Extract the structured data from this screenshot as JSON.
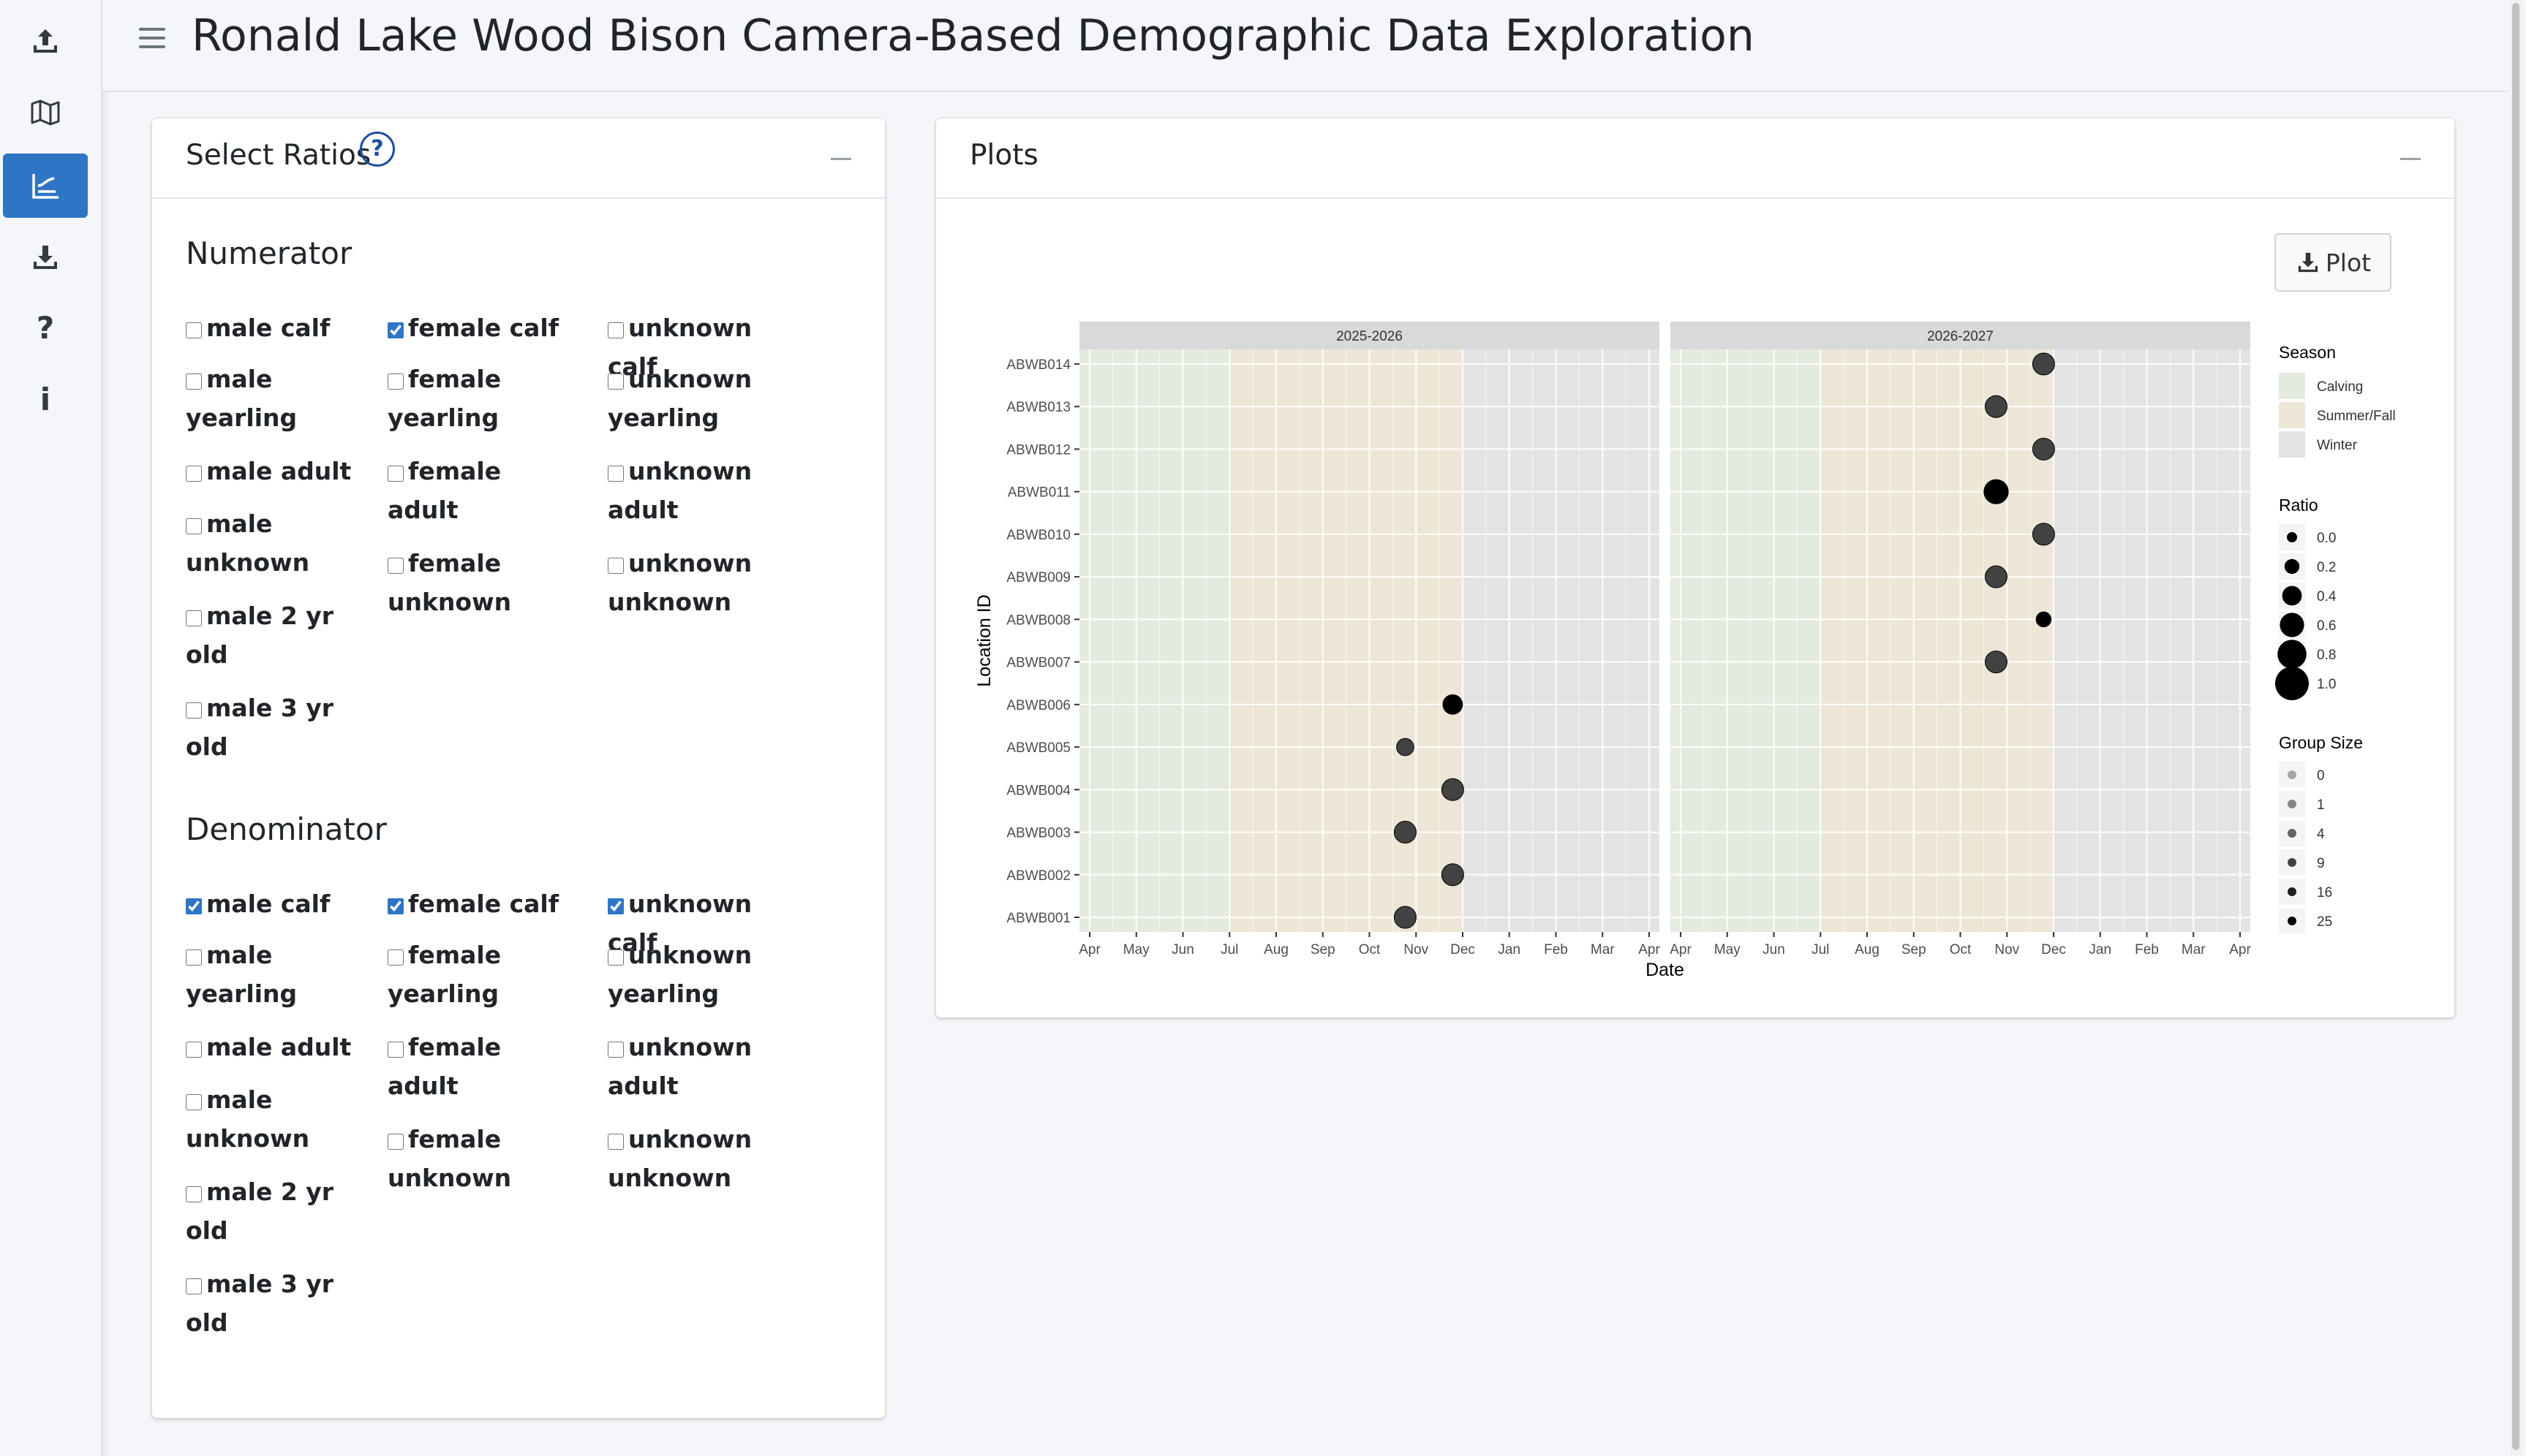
{
  "app_title": "Ronald Lake Wood Bison Camera-Based Demographic Data Exploration",
  "sidebar": {
    "items": [
      {
        "name": "upload-icon"
      },
      {
        "name": "map-icon"
      },
      {
        "name": "chart-icon",
        "active": true
      },
      {
        "name": "download-icon"
      },
      {
        "name": "help-icon",
        "glyph": "?"
      },
      {
        "name": "info-icon",
        "glyph": "i"
      }
    ]
  },
  "ratios_panel": {
    "title": "Select Ratios",
    "help_glyph": "?",
    "numerator": {
      "title": "Numerator",
      "options": [
        {
          "label": "male calf",
          "checked": false
        },
        {
          "label": "female calf",
          "checked": true
        },
        {
          "label": "unknown calf",
          "checked": false
        },
        {
          "label": "male yearling",
          "checked": false
        },
        {
          "label": "female yearling",
          "checked": false
        },
        {
          "label": "unknown yearling",
          "checked": false
        },
        {
          "label": "male adult",
          "checked": false
        },
        {
          "label": "female adult",
          "checked": false
        },
        {
          "label": "unknown adult",
          "checked": false
        },
        {
          "label": "male unknown",
          "checked": false
        },
        {
          "label": "female unknown",
          "checked": false
        },
        {
          "label": "unknown unknown",
          "checked": false
        },
        {
          "label": "male 2 yr old",
          "checked": false
        },
        {
          "label": "male 3 yr old",
          "checked": false
        }
      ]
    },
    "denominator": {
      "title": "Denominator",
      "options": [
        {
          "label": "male calf",
          "checked": true
        },
        {
          "label": "female calf",
          "checked": true
        },
        {
          "label": "unknown calf",
          "checked": true
        },
        {
          "label": "male yearling",
          "checked": false
        },
        {
          "label": "female yearling",
          "checked": false
        },
        {
          "label": "unknown yearling",
          "checked": false
        },
        {
          "label": "male adult",
          "checked": false
        },
        {
          "label": "female adult",
          "checked": false
        },
        {
          "label": "unknown adult",
          "checked": false
        },
        {
          "label": "male unknown",
          "checked": false
        },
        {
          "label": "female unknown",
          "checked": false
        },
        {
          "label": "unknown unknown",
          "checked": false
        },
        {
          "label": "male 2 yr old",
          "checked": false
        },
        {
          "label": "male 3 yr old",
          "checked": false
        }
      ]
    }
  },
  "plots_panel": {
    "title": "Plots",
    "plot_button_label": "Plot"
  },
  "chart_data": {
    "type": "scatter",
    "xlabel": "Date",
    "ylabel": "Location ID",
    "facets": [
      "2025-2026",
      "2026-2027"
    ],
    "x_tick_labels": [
      "Apr",
      "May",
      "Jun",
      "Jul",
      "Aug",
      "Sep",
      "Oct",
      "Nov",
      "Dec",
      "Jan",
      "Feb",
      "Mar",
      "Apr"
    ],
    "y_categories": [
      "ABWB001",
      "ABWB002",
      "ABWB003",
      "ABWB004",
      "ABWB005",
      "ABWB006",
      "ABWB007",
      "ABWB008",
      "ABWB009",
      "ABWB010",
      "ABWB011",
      "ABWB012",
      "ABWB013",
      "ABWB014"
    ],
    "seasons": [
      {
        "name": "Calving",
        "start_month": 0,
        "end_month": 3.0,
        "color": "#e3ebdf"
      },
      {
        "name": "Summer/Fall",
        "start_month": 3.0,
        "end_month": 8.0,
        "color": "#ede6d6"
      },
      {
        "name": "Winter",
        "start_month": 8.0,
        "end_month": 12.0,
        "color": "#e3e3e3"
      }
    ],
    "points": [
      {
        "facet": "2025-2026",
        "location": "ABWB001",
        "date": "2025-10-24",
        "ratio": 0.5,
        "group_size": 9
      },
      {
        "facet": "2025-2026",
        "location": "ABWB002",
        "date": "2025-11-24",
        "ratio": 0.5,
        "group_size": 9
      },
      {
        "facet": "2025-2026",
        "location": "ABWB003",
        "date": "2025-10-24",
        "ratio": 0.5,
        "group_size": 9
      },
      {
        "facet": "2025-2026",
        "location": "ABWB004",
        "date": "2025-11-24",
        "ratio": 0.5,
        "group_size": 9
      },
      {
        "facet": "2025-2026",
        "location": "ABWB005",
        "date": "2025-10-24",
        "ratio": 0.3,
        "group_size": 9
      },
      {
        "facet": "2025-2026",
        "location": "ABWB006",
        "date": "2025-11-24",
        "ratio": 0.4,
        "group_size": 25
      },
      {
        "facet": "2026-2027",
        "location": "ABWB007",
        "date": "2026-10-24",
        "ratio": 0.5,
        "group_size": 9
      },
      {
        "facet": "2026-2027",
        "location": "ABWB008",
        "date": "2026-11-24",
        "ratio": 0.2,
        "group_size": 25
      },
      {
        "facet": "2026-2027",
        "location": "ABWB009",
        "date": "2026-10-24",
        "ratio": 0.5,
        "group_size": 9
      },
      {
        "facet": "2026-2027",
        "location": "ABWB010",
        "date": "2026-11-24",
        "ratio": 0.5,
        "group_size": 9
      },
      {
        "facet": "2026-2027",
        "location": "ABWB011",
        "date": "2026-10-24",
        "ratio": 0.6,
        "group_size": 25
      },
      {
        "facet": "2026-2027",
        "location": "ABWB012",
        "date": "2026-11-24",
        "ratio": 0.5,
        "group_size": 9
      },
      {
        "facet": "2026-2027",
        "location": "ABWB013",
        "date": "2026-10-24",
        "ratio": 0.5,
        "group_size": 9
      },
      {
        "facet": "2026-2027",
        "location": "ABWB014",
        "date": "2026-11-24",
        "ratio": 0.5,
        "group_size": 9
      }
    ],
    "legend_season": {
      "title": "Season",
      "items": [
        "Calving",
        "Summer/Fall",
        "Winter"
      ]
    },
    "legend_ratio": {
      "title": "Ratio",
      "items": [
        "0.0",
        "0.2",
        "0.4",
        "0.6",
        "0.8",
        "1.0"
      ]
    },
    "legend_group_size": {
      "title": "Group Size",
      "items": [
        "0",
        "1",
        "4",
        "9",
        "16",
        "25"
      ]
    },
    "legend_placement": "right",
    "grid": true
  }
}
